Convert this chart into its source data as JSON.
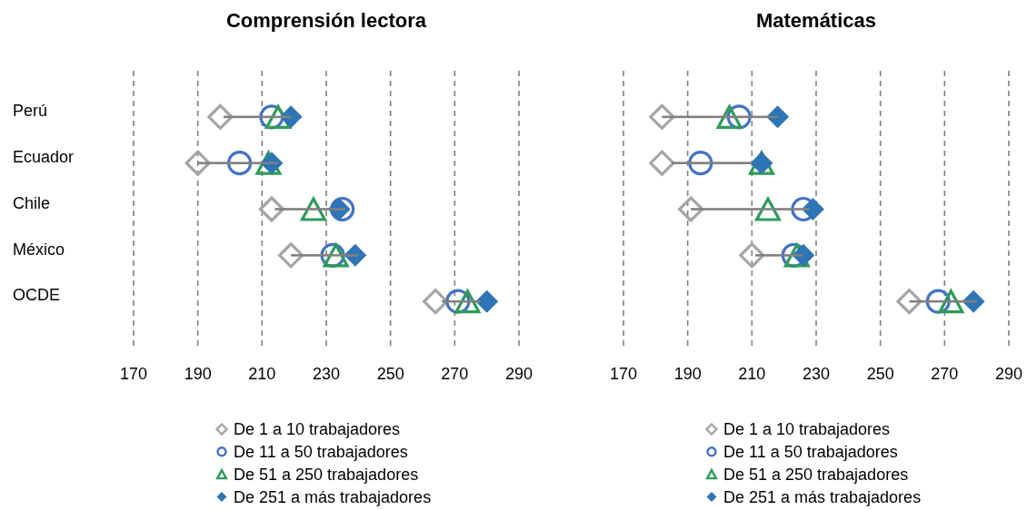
{
  "chart_data": [
    {
      "type": "scatter",
      "orientation": "horizontal",
      "title": "Comprensión lectora",
      "categories": [
        "Perú",
        "Ecuador",
        "Chile",
        "México",
        "OCDE"
      ],
      "series": [
        {
          "type": "bar",
          "color": "#808080",
          "base": [
            198,
            190,
            214,
            219,
            266
          ],
          "values": [
            21,
            25,
            22,
            21,
            12
          ]
        },
        {
          "name": "De 1 a 10 trabajadores",
          "color": "#a5a5a5",
          "marker": "diamond",
          "values": [
            197,
            190,
            213,
            219,
            264
          ]
        },
        {
          "name": "De 11 a 50 trabajadores",
          "color": "#4472c4",
          "marker": "circle",
          "values": [
            213,
            203,
            235,
            232,
            271
          ]
        },
        {
          "name": "De 51 a 250 trabajadores",
          "color": "#2e9b58",
          "marker": "triangle",
          "values": [
            215,
            212,
            226,
            233,
            274
          ]
        },
        {
          "name": "De 251 a más trabajadores",
          "color": "#2e75b6",
          "marker": "diamond",
          "values": [
            219,
            213,
            234,
            239,
            280
          ]
        }
      ],
      "xlim": [
        170,
        290
      ],
      "xticks": [
        170,
        190,
        210,
        230,
        250,
        270,
        290
      ],
      "grid": "x",
      "legend": "bottom"
    },
    {
      "type": "scatter",
      "orientation": "horizontal",
      "title": "Matemáticas",
      "categories": [
        null,
        null,
        null,
        null,
        null
      ],
      "series": [
        {
          "type": "bar",
          "color": "#808080",
          "base": [
            182,
            185,
            191,
            211,
            259
          ],
          "values": [
            36,
            25,
            37,
            15,
            21
          ]
        },
        {
          "name": "De 1 a 10 trabajadores",
          "color": "#a5a5a5",
          "marker": "diamond",
          "values": [
            182,
            182,
            191,
            210,
            259
          ]
        },
        {
          "name": "De 11 a 50 trabajadores",
          "color": "#4472c4",
          "marker": "circle",
          "values": [
            206,
            194,
            226,
            223,
            268
          ]
        },
        {
          "name": "De 51 a 250 trabajadores",
          "color": "#2e9b58",
          "marker": "triangle",
          "values": [
            203,
            213,
            215,
            224,
            272
          ]
        },
        {
          "name": "De 251 a más trabajadores",
          "color": "#2e75b6",
          "marker": "diamond",
          "values": [
            218,
            213,
            229,
            226,
            279
          ]
        }
      ],
      "xlim": [
        170,
        290
      ],
      "xticks": [
        170,
        190,
        210,
        230,
        250,
        270,
        290
      ],
      "grid": "x",
      "legend": "bottom",
      "tick_labels": "x"
    }
  ]
}
